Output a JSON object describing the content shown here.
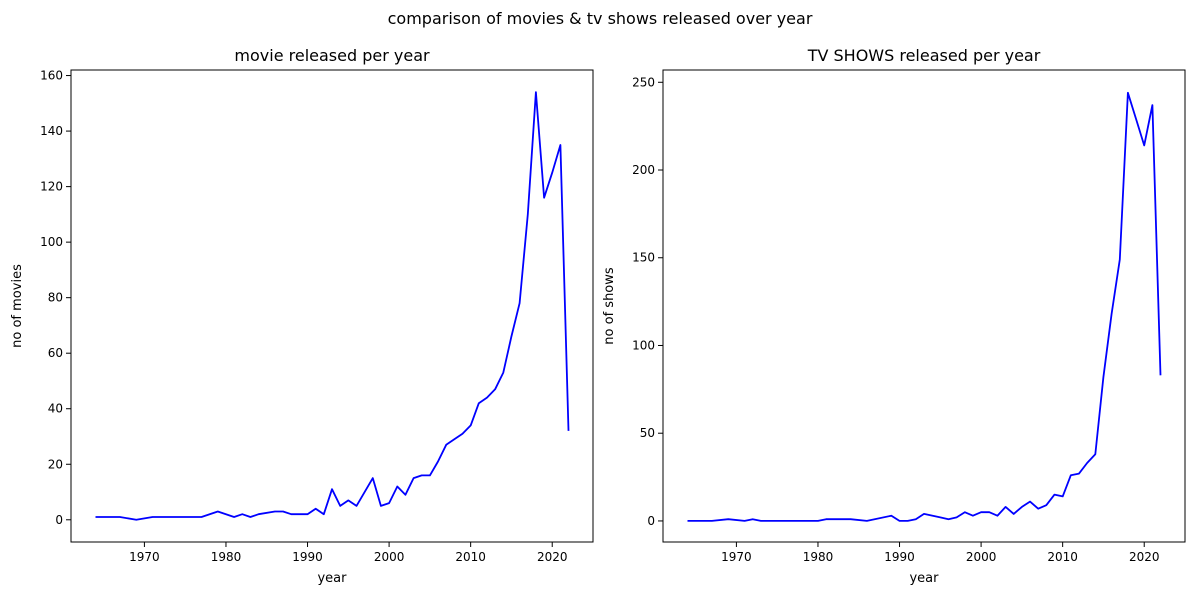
{
  "figure": {
    "suptitle": "comparison of movies & tv shows released over year"
  },
  "chart_data": [
    {
      "type": "line",
      "title": "movie released per year",
      "xlabel": "year",
      "ylabel": "no of movies",
      "xlim": [
        1961,
        2025
      ],
      "ylim": [
        -8,
        162
      ],
      "xticks": [
        1970,
        1980,
        1990,
        2000,
        2010,
        2020
      ],
      "yticks": [
        0,
        20,
        40,
        60,
        80,
        100,
        120,
        140,
        160
      ],
      "grid": false,
      "line_color": "#0000ff",
      "series": [
        {
          "x": [
            1964,
            1967,
            1969,
            1971,
            1973,
            1975,
            1977,
            1979,
            1981,
            1982,
            1983,
            1984,
            1986,
            1987,
            1988,
            1989,
            1990,
            1991,
            1992,
            1993,
            1994,
            1995,
            1996,
            1998,
            1999,
            2000,
            2001,
            2002,
            2003,
            2004,
            2005,
            2006,
            2007,
            2008,
            2009,
            2010,
            2011,
            2012,
            2013,
            2014,
            2015,
            2016,
            2017,
            2018,
            2019,
            2020,
            2021,
            2022
          ],
          "y": [
            1,
            1,
            0,
            1,
            1,
            1,
            1,
            3,
            1,
            2,
            1,
            2,
            3,
            3,
            2,
            2,
            2,
            4,
            2,
            11,
            5,
            7,
            5,
            15,
            5,
            6,
            12,
            9,
            15,
            16,
            16,
            21,
            27,
            29,
            31,
            34,
            42,
            44,
            47,
            53,
            66,
            78,
            110,
            154,
            116,
            125,
            135,
            32
          ]
        }
      ]
    },
    {
      "type": "line",
      "title": "TV SHOWS released per year",
      "xlabel": "year",
      "ylabel": "no of shows",
      "xlim": [
        1961,
        2025
      ],
      "ylim": [
        -12,
        257
      ],
      "xticks": [
        1970,
        1980,
        1990,
        2000,
        2010,
        2020
      ],
      "yticks": [
        0,
        50,
        100,
        150,
        200,
        250
      ],
      "grid": false,
      "line_color": "#0000ff",
      "series": [
        {
          "x": [
            1964,
            1967,
            1969,
            1971,
            1972,
            1973,
            1975,
            1977,
            1980,
            1981,
            1984,
            1986,
            1989,
            1990,
            1991,
            1992,
            1993,
            1995,
            1996,
            1997,
            1998,
            1999,
            2000,
            2001,
            2002,
            2003,
            2004,
            2005,
            2006,
            2007,
            2008,
            2009,
            2010,
            2011,
            2012,
            2013,
            2014,
            2015,
            2016,
            2017,
            2018,
            2019,
            2020,
            2021,
            2022
          ],
          "y": [
            0,
            0,
            1,
            0,
            1,
            0,
            0,
            0,
            0,
            1,
            1,
            0,
            3,
            0,
            0,
            1,
            4,
            2,
            1,
            2,
            5,
            3,
            5,
            5,
            3,
            8,
            4,
            8,
            11,
            7,
            9,
            15,
            14,
            26,
            27,
            33,
            38,
            82,
            118,
            149,
            244,
            229,
            214,
            237,
            83
          ]
        }
      ]
    }
  ]
}
